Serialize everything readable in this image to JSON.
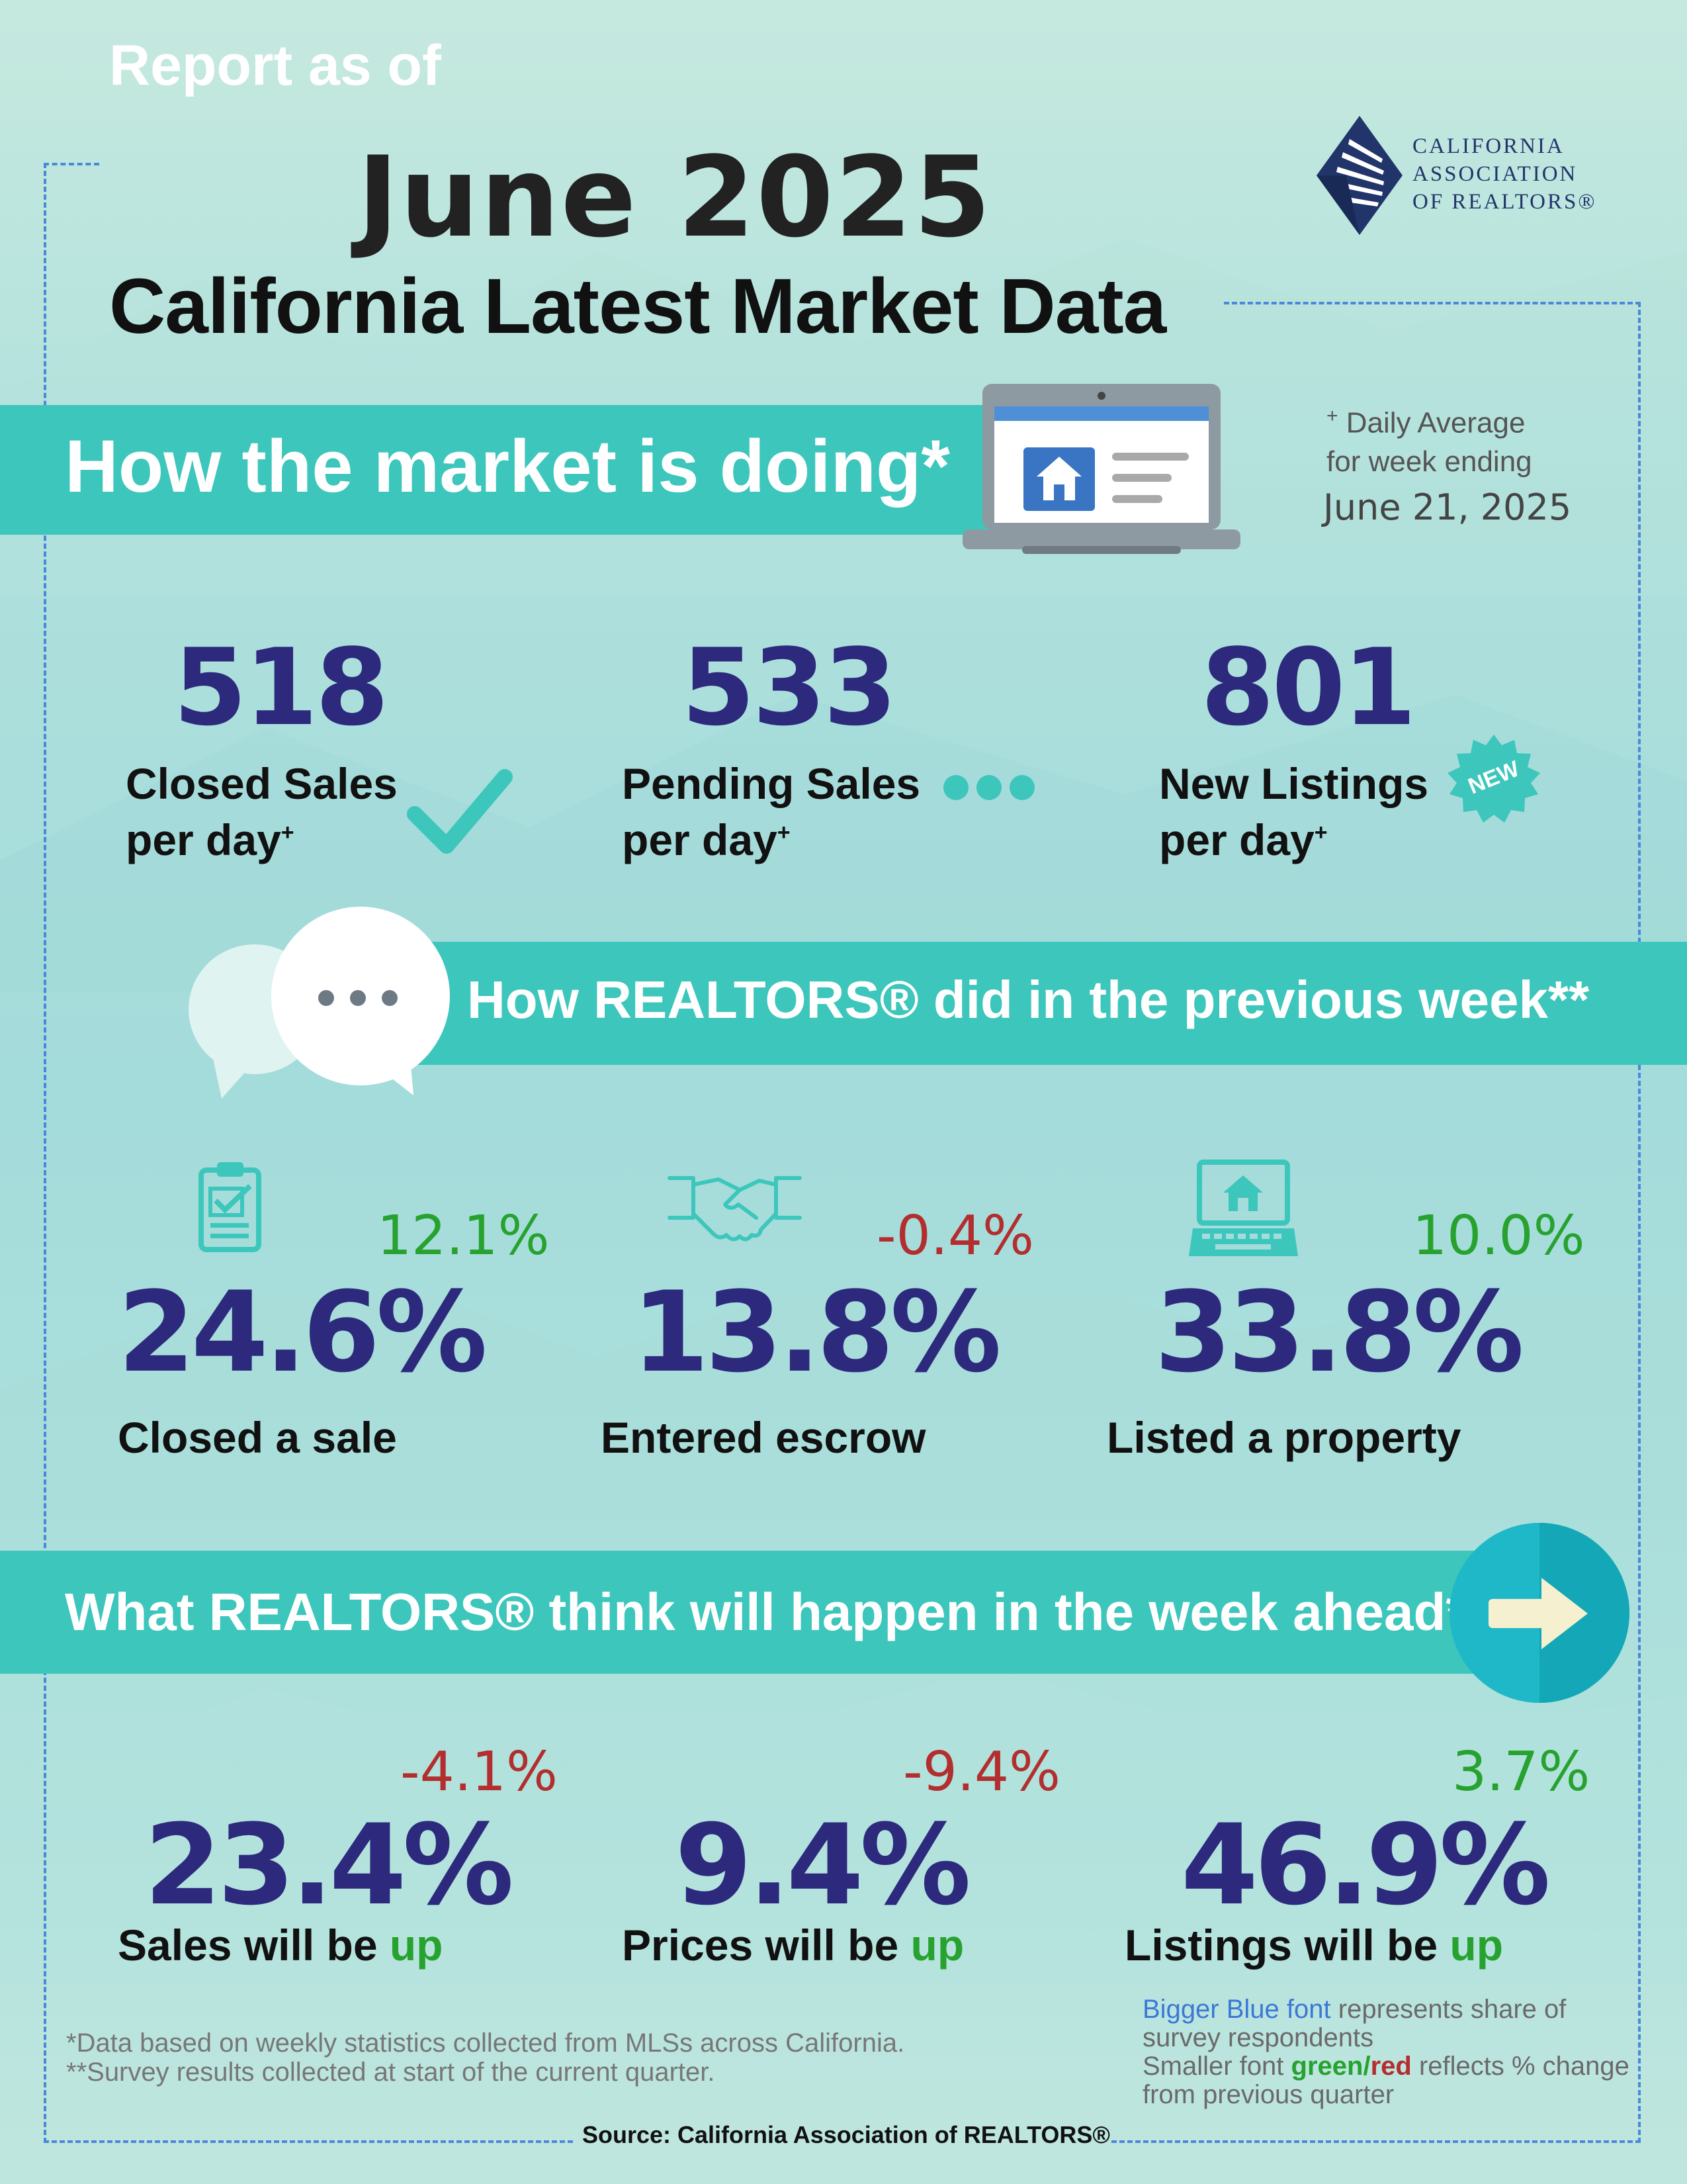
{
  "header": {
    "report_as_of": "Report as of",
    "date": "June 2025",
    "title": "California Latest Market Data"
  },
  "logo": {
    "line1": "CALIFORNIA",
    "line2": "ASSOCIATION",
    "line3": "OF REALTORS®"
  },
  "market": {
    "heading": "How the market is doing*",
    "daily_avg_mark": "+",
    "daily_avg_line1": "Daily Average",
    "daily_avg_line2": "for week ending",
    "week_ending": "June 21, 2025",
    "stats": [
      {
        "value": "518",
        "label1": "Closed Sales",
        "label2": "per day",
        "mark": "+"
      },
      {
        "value": "533",
        "label1": "Pending Sales",
        "label2": "per day",
        "mark": "+"
      },
      {
        "value": "801",
        "label1": "New Listings",
        "label2": "per day",
        "mark": "+",
        "badge": "NEW"
      }
    ]
  },
  "previous_week": {
    "heading": "How REALTORS® did in the previous week**",
    "stats": [
      {
        "value": "24.6%",
        "change": "12.1%",
        "label": "Closed a sale",
        "icon": "clipboard-icon"
      },
      {
        "value": "13.8%",
        "change": "-0.4%",
        "label": "Entered escrow",
        "icon": "handshake-icon"
      },
      {
        "value": "33.8%",
        "change": "10.0%",
        "label": "Listed a property",
        "icon": "laptop-house-icon"
      }
    ]
  },
  "week_ahead": {
    "heading": "What REALTORS® think will happen in the week ahead**",
    "stats": [
      {
        "value": "23.4%",
        "change": "-4.1%",
        "label": "Sales will be ",
        "label_up": "up"
      },
      {
        "value": "9.4%",
        "change": "-9.4%",
        "label": "Prices will be ",
        "label_up": "up"
      },
      {
        "value": "46.9%",
        "change": "3.7%",
        "label": "Listings will be ",
        "label_up": "up"
      }
    ]
  },
  "footer": {
    "note1": "*Data based on weekly statistics collected from MLSs across California.",
    "note2": "**Survey results collected at start of the current quarter.",
    "legend_blue": "Bigger Blue font",
    "legend_1": " represents share of survey respondents",
    "legend_2": "Smaller font ",
    "legend_green": "green",
    "legend_slash": "/",
    "legend_red": "red",
    "legend_3": " reflects % change from previous quarter",
    "source": "Source: California Association of REALTORS®"
  },
  "colors": {
    "band": "#3dc6bb",
    "number_blue": "#2d2a7e",
    "change_green": "#27a22f",
    "change_red": "#b32e2e",
    "border_blue": "#4a88d9"
  }
}
